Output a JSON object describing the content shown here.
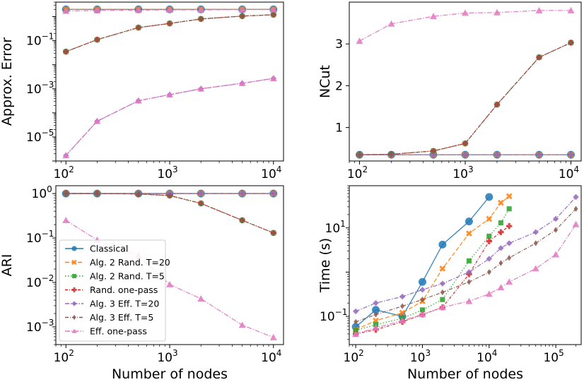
{
  "chart_data": [
    {
      "type": "line",
      "panel": "top-left",
      "xscale": "log",
      "yscale": "log",
      "xlabel": "",
      "ylabel": "Approx. Error",
      "xlim": [
        80,
        12500
      ],
      "ylim": [
        1e-06,
        4
      ],
      "xticks": [
        {
          "pow": "2"
        },
        {
          "pow": "3"
        },
        {
          "pow": "4"
        }
      ],
      "yticks": [
        {
          "pow": "−5",
          "v": 1e-05
        },
        {
          "pow": "−3",
          "v": 0.001
        },
        {
          "pow": "−1",
          "v": 0.1
        }
      ],
      "x": [
        100,
        200,
        500,
        1000,
        2000,
        5000,
        10000
      ],
      "series": [
        {
          "name": "Classical",
          "values": [
            2.0,
            2.0,
            2.0,
            2.0,
            2.0,
            2.0,
            2.0
          ]
        },
        {
          "name": "Alg. 2 Rand. T=20",
          "values": [
            2.0,
            2.0,
            2.0,
            2.0,
            2.0,
            2.0,
            2.0
          ]
        },
        {
          "name": "Alg. 2 Rand. T=5",
          "values": [
            0.035,
            0.11,
            0.35,
            0.52,
            0.8,
            1.05,
            1.2
          ]
        },
        {
          "name": "Rand. one-pass",
          "values": [
            0.035,
            0.11,
            0.35,
            0.52,
            0.8,
            1.05,
            1.2
          ]
        },
        {
          "name": "Alg. 3 Eff. T=20",
          "values": [
            1.7e-06,
            4.5e-05,
            0.00032,
            0.00057,
            0.001,
            0.0017,
            0.0027
          ]
        },
        {
          "name": "Alg. 3 Eff. T=5",
          "values": [
            0.035,
            0.11,
            0.35,
            0.52,
            0.8,
            1.05,
            1.2
          ]
        },
        {
          "name": "Eff. one-pass",
          "values": [
            1.7e-06,
            4.5e-05,
            0.00032,
            0.00057,
            0.001,
            0.0017,
            0.0027
          ]
        }
      ],
      "extra_series": [
        {
          "name": "Eff. one-pass (upper)",
          "values": [
            1.7,
            1.8,
            1.85,
            1.9,
            1.9,
            1.95,
            1.95
          ]
        }
      ]
    },
    {
      "type": "line",
      "panel": "top-right",
      "xscale": "log",
      "yscale": "linear",
      "xlabel": "",
      "ylabel": "NCut",
      "xlim": [
        80,
        12500
      ],
      "ylim": [
        0.2,
        4.0
      ],
      "xticks": [
        {
          "pow": "2"
        },
        {
          "pow": "3"
        },
        {
          "pow": "4"
        }
      ],
      "yticks": [
        {
          "label": "1",
          "v": 1
        },
        {
          "label": "2",
          "v": 2
        },
        {
          "label": "3",
          "v": 3
        }
      ],
      "x": [
        100,
        200,
        500,
        1000,
        2000,
        5000,
        10000
      ],
      "series": [
        {
          "name": "Classical",
          "values": [
            0.35,
            0.35,
            0.35,
            0.35,
            0.35,
            0.35,
            0.35
          ]
        },
        {
          "name": "Alg. 2 Rand. T=20",
          "values": [
            0.35,
            0.35,
            0.35,
            0.35,
            0.35,
            0.35,
            0.35
          ]
        },
        {
          "name": "Alg. 2 Rand. T=5",
          "values": [
            0.35,
            0.36,
            0.44,
            0.62,
            1.55,
            2.68,
            3.03
          ]
        },
        {
          "name": "Rand. one-pass",
          "values": [
            0.35,
            0.36,
            0.44,
            0.62,
            1.55,
            2.68,
            3.03
          ]
        },
        {
          "name": "Alg. 3 Eff. T=20",
          "values": [
            0.35,
            0.35,
            0.35,
            0.35,
            0.35,
            0.35,
            0.35
          ]
        },
        {
          "name": "Alg. 3 Eff. T=5",
          "values": [
            0.35,
            0.36,
            0.44,
            0.62,
            1.55,
            2.68,
            3.03
          ]
        },
        {
          "name": "Eff. one-pass",
          "values": [
            3.07,
            3.48,
            3.66,
            3.74,
            3.75,
            3.8,
            3.8
          ]
        }
      ]
    },
    {
      "type": "line",
      "panel": "bottom-left",
      "xscale": "log",
      "yscale": "log",
      "xlabel": "Number of nodes",
      "ylabel": "ARI",
      "xlim": [
        80,
        12500
      ],
      "ylim": [
        0.0004,
        1.5
      ],
      "xticks": [
        {
          "pow": "2"
        },
        {
          "pow": "3"
        },
        {
          "pow": "4"
        }
      ],
      "yticks": [
        {
          "pow": "−3",
          "v": 0.001
        },
        {
          "pow": "−2",
          "v": 0.01
        },
        {
          "pow": "−1",
          "v": 0.1
        },
        {
          "pow": "0",
          "v": 1
        }
      ],
      "x": [
        100,
        200,
        500,
        1000,
        2000,
        5000,
        10000
      ],
      "series": [
        {
          "name": "Classical",
          "values": [
            1,
            1,
            1,
            1,
            1,
            1,
            1
          ]
        },
        {
          "name": "Alg. 2 Rand. T=20",
          "values": [
            1,
            1,
            1,
            1,
            1,
            1,
            1
          ]
        },
        {
          "name": "Alg. 2 Rand. T=5",
          "values": [
            1,
            1,
            0.98,
            0.9,
            0.6,
            0.25,
            0.13
          ]
        },
        {
          "name": "Rand. one-pass",
          "values": [
            1,
            1,
            0.98,
            0.9,
            0.6,
            0.25,
            0.13
          ]
        },
        {
          "name": "Alg. 3 Eff. T=20",
          "values": [
            1,
            1,
            1,
            1,
            1,
            1,
            1
          ]
        },
        {
          "name": "Alg. 3 Eff. T=5",
          "values": [
            1,
            1,
            0.98,
            0.9,
            0.6,
            0.25,
            0.13
          ]
        },
        {
          "name": "Eff. one-pass",
          "values": [
            0.25,
            0.09,
            0.04,
            0.009,
            0.0043,
            0.0011,
            0.00058
          ]
        }
      ]
    },
    {
      "type": "line",
      "panel": "bottom-right",
      "xscale": "log",
      "yscale": "log",
      "xlabel": "Number of nodes",
      "ylabel": "Time (s)",
      "xlim": [
        80,
        240000
      ],
      "ylim": [
        0.023,
        90
      ],
      "xticks": [
        {
          "pow": "2"
        },
        {
          "pow": "3"
        },
        {
          "pow": "4"
        },
        {
          "pow": "5"
        }
      ],
      "yticks": [
        {
          "pow": "−1",
          "v": 0.1
        },
        {
          "pow": "1",
          "v": 10
        }
      ],
      "series": [
        {
          "name": "Classical",
          "x": [
            100,
            200,
            500,
            1000,
            2000,
            5000,
            10000
          ],
          "values": [
            0.058,
            0.14,
            0.1,
            0.6,
            4.2,
            14,
            50
          ]
        },
        {
          "name": "Alg. 2 Rand. T=20",
          "x": [
            100,
            200,
            500,
            1000,
            2000,
            5000,
            10000,
            15000,
            20000
          ],
          "values": [
            0.05,
            0.08,
            0.12,
            0.22,
            1.2,
            7.5,
            16,
            37,
            52
          ]
        },
        {
          "name": "Alg. 2 Rand. T=5",
          "x": [
            100,
            200,
            500,
            1000,
            2000,
            5000,
            10000,
            15000,
            20000
          ],
          "values": [
            0.048,
            0.065,
            0.09,
            0.14,
            0.24,
            1.8,
            6.5,
            13,
            27
          ]
        },
        {
          "name": "Rand. one-pass",
          "x": [
            100,
            200,
            500,
            1000,
            2000,
            5000,
            10000,
            15000,
            20000
          ],
          "values": [
            0.04,
            0.05,
            0.075,
            0.11,
            0.16,
            0.9,
            5,
            8,
            11
          ]
        },
        {
          "name": "Alg. 3 Eff. T=20",
          "x": [
            100,
            200,
            500,
            1000,
            2000,
            5000,
            10000,
            15000,
            20000,
            50000,
            100000,
            200000
          ],
          "values": [
            0.13,
            0.2,
            0.28,
            0.4,
            0.55,
            1.0,
            2.0,
            3.5,
            4.5,
            8,
            16,
            50
          ]
        },
        {
          "name": "Alg. 3 Eff. T=5",
          "x": [
            100,
            200,
            500,
            1000,
            2000,
            5000,
            10000,
            15000,
            20000,
            50000,
            100000,
            200000
          ],
          "values": [
            0.075,
            0.11,
            0.17,
            0.24,
            0.35,
            0.6,
            1.0,
            1.6,
            2.1,
            4.5,
            9,
            27
          ]
        },
        {
          "name": "Eff. one-pass",
          "x": [
            100,
            200,
            500,
            1000,
            2000,
            5000,
            10000,
            15000,
            20000,
            50000,
            100000,
            200000
          ],
          "values": [
            0.04,
            0.055,
            0.08,
            0.11,
            0.16,
            0.22,
            0.32,
            0.45,
            0.6,
            1.2,
            2.5,
            12
          ]
        }
      ]
    }
  ],
  "legend": {
    "location": "bottom-left panel, center-left",
    "entries": [
      {
        "label": "Classical",
        "color": "#1f77b4",
        "marker": "circle"
      },
      {
        "label": "Alg. 2 Rand. T=20",
        "color": "#ff7f0e",
        "marker": "x"
      },
      {
        "label": "Alg. 2 Rand. T=5",
        "color": "#2ca02c",
        "marker": "square"
      },
      {
        "label": "Rand. one-pass",
        "color": "#d62728",
        "marker": "plus"
      },
      {
        "label": "Alg. 3 Eff. T=20",
        "color": "#9467bd",
        "marker": "diamond"
      },
      {
        "label": "Alg. 3 Eff. T=5",
        "color": "#8c564b",
        "marker": "thin-diamond"
      },
      {
        "label": "Eff. one-pass",
        "color": "#e377c2",
        "marker": "triangle"
      }
    ]
  }
}
